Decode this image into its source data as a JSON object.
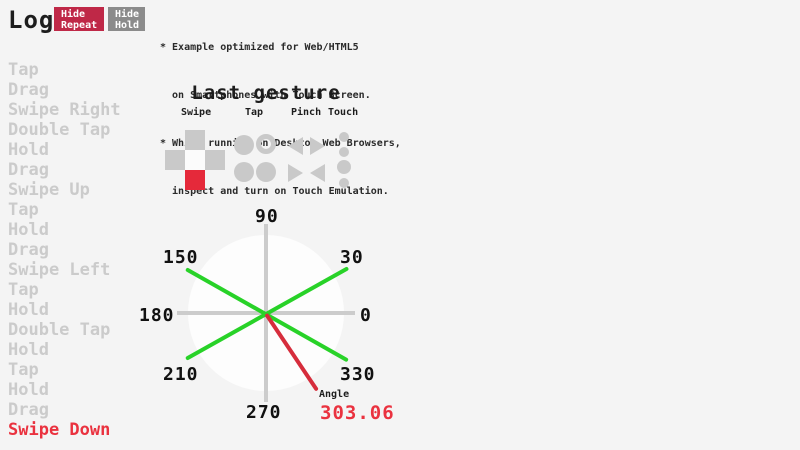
{
  "header": {
    "title": "Log",
    "hide_repeat_button": [
      "Hide",
      "Repeat"
    ],
    "hide_hold_button": [
      "Hide",
      "Hold"
    ]
  },
  "notes": {
    "lines": [
      "* Example optimized for Web/HTML5",
      "  on Smartphones with Touch Screen.",
      "* While running on Desktop Web Browsers,",
      "  inspect and turn on Touch Emulation."
    ]
  },
  "log": {
    "items": [
      "Tap",
      "Drag",
      "Swipe Right",
      "Double Tap",
      "Hold",
      "Drag",
      "Swipe Up",
      "Tap",
      "Hold",
      "Drag",
      "Swipe Left",
      "Tap",
      "Hold",
      "Double Tap",
      "Hold",
      "Tap",
      "Hold",
      "Drag",
      "Swipe Down"
    ],
    "active_item": "Swipe Down"
  },
  "last_gesture": {
    "title": "Last gesture",
    "columns": [
      "Swipe",
      "Tap",
      "Pinch",
      "Touch"
    ],
    "active_swipe_direction": "down",
    "icons": [
      "swipe-dpad-icon",
      "tap-circles-icon",
      "pinch-triangles-icon",
      "touch-dots-icon"
    ]
  },
  "compass": {
    "labels": [
      "90",
      "150",
      "30",
      "180",
      "0",
      "210",
      "330",
      "270"
    ],
    "angle_label": "Angle",
    "angle_value": "303.06"
  },
  "colors": {
    "background": "#f4f4f4",
    "button_red": "#bf2847",
    "button_gray": "#8b8b8b",
    "log_gray": "#cbcbcb",
    "icon_gray": "#c9c9c9",
    "accent_red": "#e5293a",
    "text_red": "#ea323f",
    "line_red": "#d62d3c",
    "line_green": "#28d228",
    "axis_gray": "#cccccc"
  }
}
